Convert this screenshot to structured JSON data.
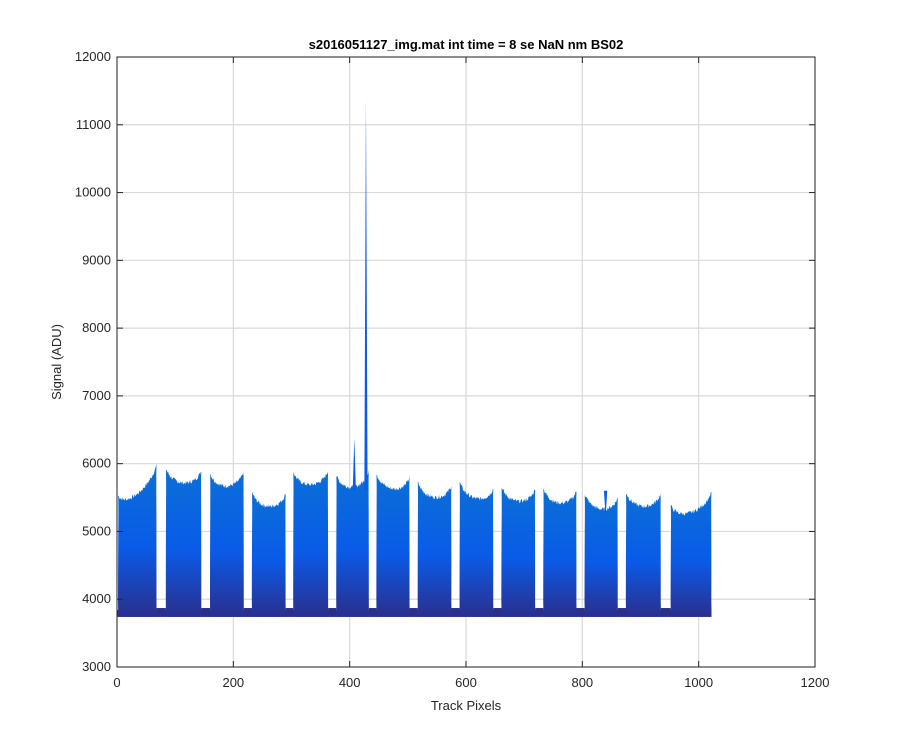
{
  "chart_data": {
    "type": "area",
    "title": "s2016051127_img.mat int time = 8 se  NaN nm BS02",
    "xlabel": "Track Pixels",
    "ylabel": "Signal (ADU)",
    "xlim": [
      0,
      1200
    ],
    "ylim": [
      3000,
      12000
    ],
    "xticks": [
      0,
      200,
      400,
      600,
      800,
      1000,
      1200
    ],
    "yticks": [
      3000,
      4000,
      5000,
      6000,
      7000,
      8000,
      9000,
      10000,
      11000,
      12000
    ],
    "grid": true,
    "baseline": 3780,
    "gap_floor": 3870,
    "colors": {
      "top": "#0b6fd6",
      "mid": "#0a5be8",
      "bottom": "#2a2f8c",
      "baseline": "#2b3486",
      "spike": "#0a5be8"
    },
    "segments": [
      {
        "x0": 2,
        "x1": 68,
        "start": 5450,
        "end": 5900
      },
      {
        "x0": 84,
        "x1": 145,
        "start": 5850,
        "end": 5820
      },
      {
        "x0": 160,
        "x1": 218,
        "start": 5780,
        "end": 5800
      },
      {
        "x0": 232,
        "x1": 290,
        "start": 5500,
        "end": 5480
      },
      {
        "x0": 303,
        "x1": 363,
        "start": 5800,
        "end": 5820
      },
      {
        "x0": 377,
        "x1": 433,
        "start": 5750,
        "end": 5800
      },
      {
        "x0": 446,
        "x1": 503,
        "start": 5780,
        "end": 5720
      },
      {
        "x0": 517,
        "x1": 575,
        "start": 5650,
        "end": 5600
      },
      {
        "x0": 589,
        "x1": 647,
        "start": 5650,
        "end": 5560
      },
      {
        "x0": 661,
        "x1": 719,
        "start": 5580,
        "end": 5550
      },
      {
        "x0": 733,
        "x1": 790,
        "start": 5560,
        "end": 5520
      },
      {
        "x0": 804,
        "x1": 861,
        "start": 5480,
        "end": 5420
      },
      {
        "x0": 875,
        "x1": 935,
        "start": 5500,
        "end": 5480
      },
      {
        "x0": 952,
        "x1": 1022,
        "start": 5300,
        "end": 5500
      }
    ],
    "spikes": [
      {
        "x": 408,
        "y": 6380
      },
      {
        "x": 428,
        "y": 11400
      },
      {
        "x": 840,
        "y": 5200
      }
    ],
    "x_end": 1022
  }
}
